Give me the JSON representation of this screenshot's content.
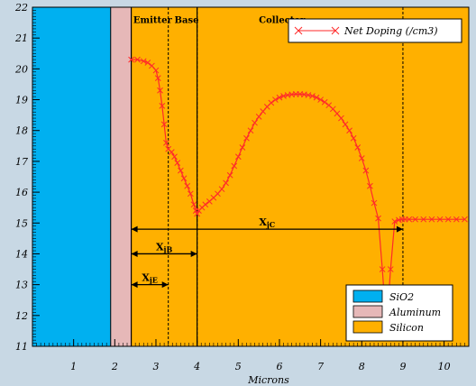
{
  "chart_data": {
    "type": "line",
    "title": "",
    "xlabel": "Microns",
    "ylabel": "",
    "xlim": [
      0,
      10.6
    ],
    "ylim": [
      11,
      22
    ],
    "x_ticks": [
      "1",
      "2",
      "3",
      "4",
      "5",
      "6",
      "7",
      "8",
      "9",
      "10"
    ],
    "y_ticks": [
      "11",
      "12",
      "13",
      "14",
      "15",
      "16",
      "17",
      "18",
      "19",
      "20",
      "21",
      "22"
    ],
    "regions": [
      {
        "material": "SiO2",
        "x_start": 0.0,
        "x_end": 1.9,
        "color": "#00b0f0"
      },
      {
        "material": "Aluminum",
        "x_start": 1.9,
        "x_end": 2.4,
        "color": "#e6b8b8"
      },
      {
        "material": "Silicon",
        "x_start": 2.4,
        "x_end": 10.6,
        "color": "#ffb000"
      }
    ],
    "region_labels": [
      {
        "text": "Emitter",
        "x": 2.45,
        "y": 21.6
      },
      {
        "text": "Base",
        "x": 3.45,
        "y": 21.6
      },
      {
        "text": "Collector",
        "x": 5.5,
        "y": 21.6
      }
    ],
    "junction_lines": [
      3.3,
      4.0,
      9.0
    ],
    "solid_lines": [
      2.4,
      4.0
    ],
    "dimensions": [
      {
        "label": "X",
        "sub": "jE",
        "x_start": 2.4,
        "x_end": 3.3,
        "y": 13.0
      },
      {
        "label": "X",
        "sub": "jB",
        "x_start": 2.4,
        "x_end": 4.0,
        "y": 14.0
      },
      {
        "label": "X",
        "sub": "jC",
        "x_start": 2.4,
        "x_end": 9.0,
        "y": 14.8
      }
    ],
    "series": [
      {
        "name": "Net Doping (/cm3)",
        "color": "#ff2a2a",
        "x": [
          2.4,
          2.55,
          2.7,
          2.8,
          2.9,
          3.0,
          3.05,
          3.1,
          3.15,
          3.2,
          3.25,
          3.3,
          3.38,
          3.45,
          3.52,
          3.6,
          3.68,
          3.76,
          3.84,
          3.92,
          3.97,
          4.0,
          4.04,
          4.12,
          4.2,
          4.3,
          4.4,
          4.5,
          4.6,
          4.7,
          4.8,
          4.9,
          5.0,
          5.1,
          5.2,
          5.3,
          5.4,
          5.5,
          5.6,
          5.7,
          5.8,
          5.9,
          6.0,
          6.1,
          6.2,
          6.3,
          6.4,
          6.5,
          6.6,
          6.7,
          6.8,
          6.9,
          7.0,
          7.1,
          7.2,
          7.3,
          7.4,
          7.5,
          7.6,
          7.7,
          7.8,
          7.9,
          8.0,
          8.1,
          8.2,
          8.3,
          8.4,
          8.5,
          8.6,
          8.7,
          8.8,
          8.9,
          8.98,
          9.05,
          9.15,
          9.3,
          9.5,
          9.7,
          9.9,
          10.1,
          10.3,
          10.5
        ],
        "y": [
          20.3,
          20.3,
          20.25,
          20.2,
          20.1,
          19.95,
          19.7,
          19.3,
          18.8,
          18.2,
          17.6,
          17.4,
          17.3,
          17.15,
          16.95,
          16.7,
          16.45,
          16.2,
          15.95,
          15.6,
          15.4,
          15.3,
          15.4,
          15.5,
          15.6,
          15.7,
          15.82,
          15.95,
          16.1,
          16.3,
          16.55,
          16.85,
          17.15,
          17.45,
          17.75,
          18.0,
          18.25,
          18.45,
          18.62,
          18.77,
          18.9,
          19.0,
          19.07,
          19.12,
          19.15,
          19.17,
          19.18,
          19.18,
          19.17,
          19.15,
          19.12,
          19.07,
          19.0,
          18.92,
          18.82,
          18.7,
          18.55,
          18.4,
          18.2,
          18.0,
          17.75,
          17.45,
          17.1,
          16.7,
          16.2,
          15.65,
          15.15,
          13.5,
          11.6,
          13.5,
          15.05,
          15.1,
          15.12,
          15.12,
          15.12,
          15.12,
          15.12,
          15.12,
          15.12,
          15.12,
          15.12,
          15.12
        ]
      }
    ],
    "legend_position": "top-right",
    "grid": false
  },
  "materials_legend": [
    {
      "label": "SiO2",
      "color": "#00b0f0"
    },
    {
      "label": "Aluminum",
      "color": "#e6b8b8"
    },
    {
      "label": "Silicon",
      "color": "#ffb000"
    }
  ]
}
